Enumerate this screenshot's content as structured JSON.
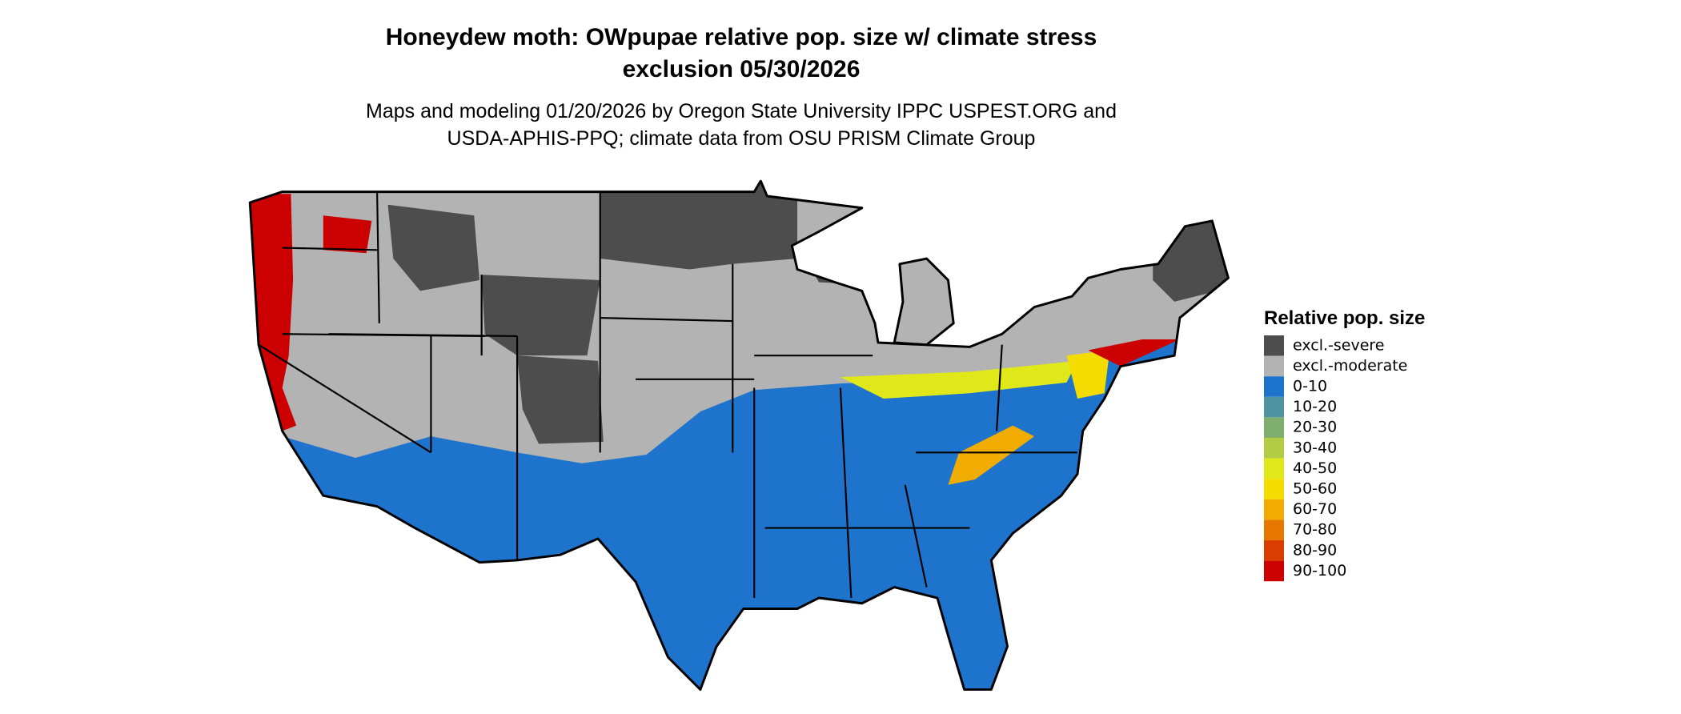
{
  "title": [
    "Honeydew moth: OWpupae relative pop. size w/ climate stress",
    "exclusion 05/30/2026"
  ],
  "subtitle": [
    "Maps and modeling 01/20/2026 by Oregon State University IPPC USPEST.ORG and",
    "USDA-APHIS-PPQ; climate data from OSU PRISM Climate Group"
  ],
  "legend": {
    "title": "Relative pop. size",
    "items": [
      {
        "label": "excl.-severe",
        "color": "#4d4d4d"
      },
      {
        "label": "excl.-moderate",
        "color": "#b3b3b3"
      },
      {
        "label": "0-10",
        "color": "#1e73cc"
      },
      {
        "label": "10-20",
        "color": "#4d94a0"
      },
      {
        "label": "20-30",
        "color": "#7fae6f"
      },
      {
        "label": "30-40",
        "color": "#b2cc44"
      },
      {
        "label": "40-50",
        "color": "#e0e81a"
      },
      {
        "label": "50-60",
        "color": "#f5dc00"
      },
      {
        "label": "60-70",
        "color": "#f0ac00"
      },
      {
        "label": "70-80",
        "color": "#e67800"
      },
      {
        "label": "80-90",
        "color": "#d93d00"
      },
      {
        "label": "90-100",
        "color": "#cc0000"
      }
    ]
  }
}
